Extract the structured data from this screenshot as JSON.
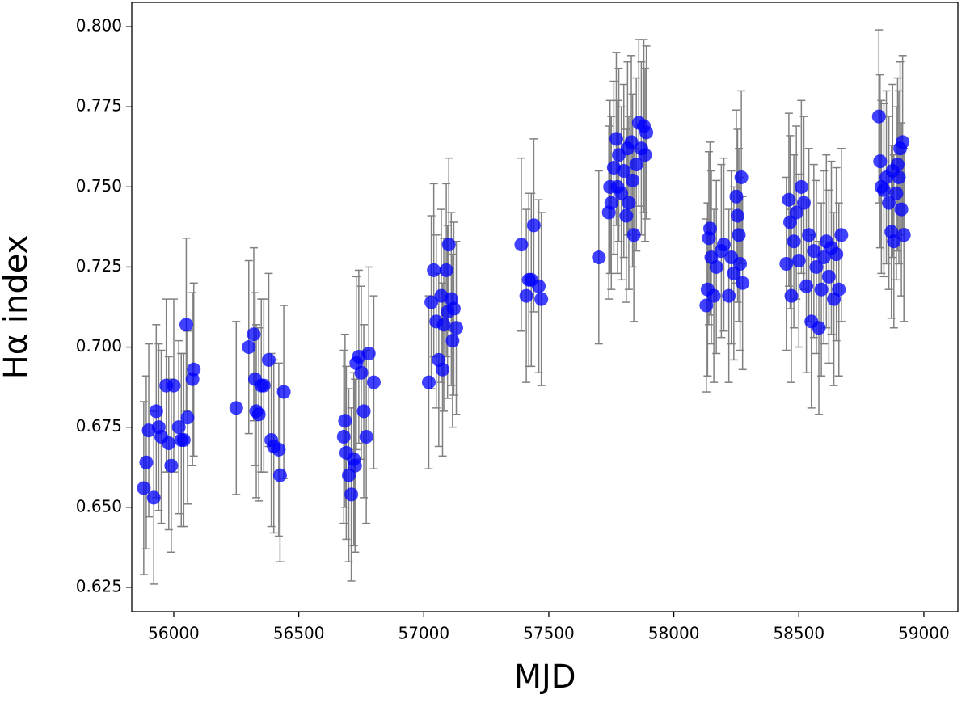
{
  "chart_data": {
    "type": "scatter",
    "xlabel": "MJD",
    "ylabel": "Hα index",
    "xlim": [
      55832,
      59136
    ],
    "ylim": [
      0.6174,
      0.8076
    ],
    "xticks": [
      56000,
      56500,
      57000,
      57500,
      58000,
      58500,
      59000
    ],
    "yticks": [
      0.625,
      {
        "value": 0.65,
        "label": "0.650"
      },
      0.675,
      {
        "value": 0.7,
        "label": "0.700"
      },
      0.725,
      {
        "value": 0.75,
        "label": "0.750"
      },
      0.775,
      {
        "value": 0.8,
        "label": "0.800"
      }
    ],
    "series": [
      {
        "color": "#0000ff",
        "error_color": "#808080",
        "x": [
          55880,
          55890,
          55900,
          55920,
          55930,
          55940,
          55950,
          55970,
          55980,
          55990,
          56000,
          56020,
          56030,
          56040,
          56050,
          56055,
          56075,
          56080,
          56250,
          56300,
          56320,
          56325,
          56330,
          56340,
          56350,
          56360,
          56380,
          56390,
          56400,
          56420,
          56425,
          56440,
          56680,
          56685,
          56690,
          56700,
          56710,
          56720,
          56725,
          56730,
          56740,
          56750,
          56760,
          56770,
          56780,
          56800,
          57020,
          57030,
          57040,
          57050,
          57060,
          57070,
          57075,
          57080,
          57090,
          57095,
          57100,
          57110,
          57115,
          57120,
          57130,
          57390,
          57410,
          57420,
          57430,
          57440,
          57460,
          57470,
          57700,
          57740,
          57745,
          57750,
          57760,
          57770,
          57775,
          57780,
          57790,
          57800,
          57810,
          57815,
          57820,
          57830,
          57835,
          57840,
          57850,
          57860,
          57870,
          57880,
          57885,
          57890,
          58130,
          58135,
          58140,
          58145,
          58150,
          58160,
          58170,
          58190,
          58200,
          58220,
          58230,
          58240,
          58250,
          58255,
          58260,
          58265,
          58270,
          58275,
          58450,
          58460,
          58465,
          58470,
          58480,
          58490,
          58500,
          58510,
          58520,
          58530,
          58540,
          58550,
          58560,
          58570,
          58580,
          58590,
          58600,
          58610,
          58620,
          58630,
          58640,
          58650,
          58660,
          58670,
          58820,
          58825,
          58830,
          58840,
          58850,
          58860,
          58870,
          58875,
          58880,
          58890,
          58895,
          58900,
          58905,
          58910,
          58915,
          58920
        ],
        "y": [
          0.656,
          0.664,
          0.674,
          0.653,
          0.68,
          0.675,
          0.672,
          0.688,
          0.67,
          0.663,
          0.688,
          0.675,
          0.671,
          0.671,
          0.707,
          0.678,
          0.69,
          0.693,
          0.681,
          0.7,
          0.704,
          0.69,
          0.68,
          0.679,
          0.688,
          0.688,
          0.696,
          0.671,
          0.669,
          0.668,
          0.66,
          0.686,
          0.672,
          0.677,
          0.667,
          0.66,
          0.654,
          0.665,
          0.663,
          0.695,
          0.697,
          0.692,
          0.68,
          0.672,
          0.698,
          0.689,
          0.689,
          0.714,
          0.724,
          0.708,
          0.696,
          0.716,
          0.693,
          0.707,
          0.724,
          0.711,
          0.732,
          0.715,
          0.702,
          0.712,
          0.706,
          0.732,
          0.716,
          0.721,
          0.721,
          0.738,
          0.719,
          0.715,
          0.728,
          0.742,
          0.75,
          0.745,
          0.756,
          0.765,
          0.75,
          0.76,
          0.748,
          0.755,
          0.741,
          0.762,
          0.745,
          0.764,
          0.752,
          0.735,
          0.757,
          0.77,
          0.762,
          0.769,
          0.76,
          0.767,
          0.713,
          0.718,
          0.734,
          0.737,
          0.728,
          0.716,
          0.725,
          0.73,
          0.732,
          0.716,
          0.728,
          0.723,
          0.747,
          0.741,
          0.735,
          0.726,
          0.753,
          0.72,
          0.726,
          0.746,
          0.739,
          0.716,
          0.733,
          0.742,
          0.727,
          0.75,
          0.745,
          0.719,
          0.735,
          0.708,
          0.73,
          0.725,
          0.706,
          0.718,
          0.728,
          0.733,
          0.722,
          0.731,
          0.715,
          0.729,
          0.718,
          0.735,
          0.772,
          0.758,
          0.75,
          0.749,
          0.753,
          0.745,
          0.736,
          0.755,
          0.733,
          0.748,
          0.757,
          0.753,
          0.762,
          0.743,
          0.764,
          0.735
        ],
        "errors": [
          0.027,
          0.027,
          0.027,
          0.027,
          0.027,
          0.026,
          0.027,
          0.027,
          0.027,
          0.027,
          0.027,
          0.027,
          0.027,
          0.027,
          0.027,
          0.027,
          0.027,
          0.027,
          0.027,
          0.027,
          0.027,
          0.027,
          0.027,
          0.027,
          0.027,
          0.027,
          0.027,
          0.027,
          0.027,
          0.027,
          0.027,
          0.027,
          0.027,
          0.027,
          0.027,
          0.027,
          0.027,
          0.027,
          0.027,
          0.027,
          0.027,
          0.027,
          0.027,
          0.027,
          0.027,
          0.027,
          0.027,
          0.027,
          0.027,
          0.027,
          0.027,
          0.027,
          0.027,
          0.027,
          0.027,
          0.027,
          0.027,
          0.027,
          0.027,
          0.027,
          0.027,
          0.027,
          0.027,
          0.027,
          0.027,
          0.027,
          0.027,
          0.027,
          0.027,
          0.027,
          0.027,
          0.027,
          0.027,
          0.027,
          0.027,
          0.027,
          0.027,
          0.027,
          0.027,
          0.027,
          0.027,
          0.027,
          0.027,
          0.027,
          0.027,
          0.026,
          0.027,
          0.027,
          0.027,
          0.027,
          0.027,
          0.027,
          0.027,
          0.027,
          0.027,
          0.027,
          0.027,
          0.027,
          0.027,
          0.027,
          0.027,
          0.027,
          0.027,
          0.027,
          0.027,
          0.027,
          0.027,
          0.027,
          0.027,
          0.027,
          0.027,
          0.027,
          0.027,
          0.027,
          0.027,
          0.027,
          0.027,
          0.027,
          0.027,
          0.027,
          0.027,
          0.027,
          0.027,
          0.027,
          0.027,
          0.027,
          0.027,
          0.027,
          0.027,
          0.027,
          0.027,
          0.027,
          0.027,
          0.027,
          0.027,
          0.027,
          0.027,
          0.027,
          0.027,
          0.027,
          0.027,
          0.027,
          0.027,
          0.027,
          0.027,
          0.027,
          0.027,
          0.027
        ]
      }
    ]
  }
}
